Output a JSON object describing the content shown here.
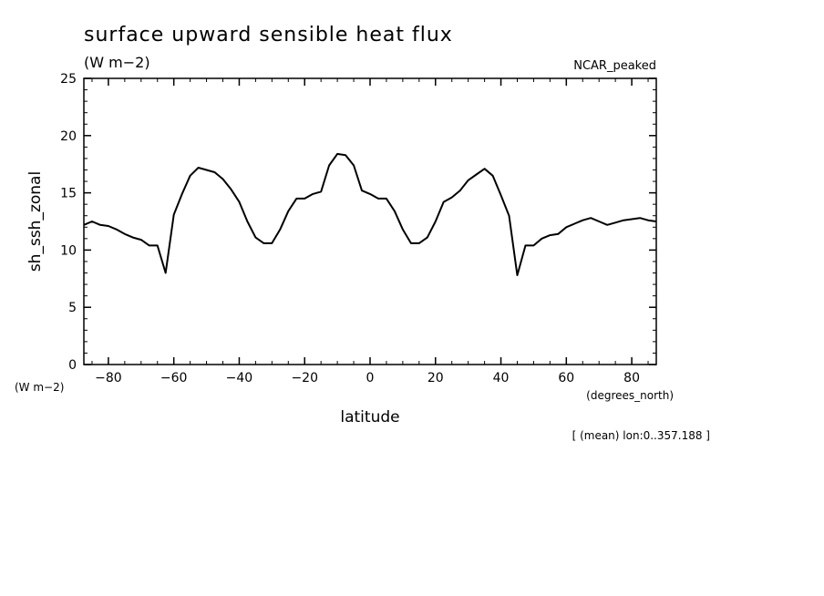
{
  "header": {
    "title": "surface upward sensible heat flux",
    "units": "(W m−2)",
    "dataset": "NCAR_peaked",
    "y_units_corner": "(W m−2)",
    "x_units": "(degrees_north)",
    "footnote": "[ (mean) lon:0..357.188 ]"
  },
  "chart_data": {
    "type": "line",
    "title": "surface upward sensible heat flux",
    "xlabel": "latitude",
    "ylabel": "sh_ssh_zonal",
    "xlim": [
      -87.5,
      87.5
    ],
    "ylim": [
      0,
      25
    ],
    "x_ticks": [
      -80,
      -60,
      -40,
      -20,
      0,
      20,
      40,
      60,
      80
    ],
    "x_tick_labels": [
      "−80",
      "−60",
      "−40",
      "−20",
      "0",
      "20",
      "40",
      "60",
      "80"
    ],
    "y_ticks": [
      0,
      5,
      10,
      15,
      20,
      25
    ],
    "y_tick_labels": [
      "0",
      "5",
      "10",
      "15",
      "20",
      "25"
    ],
    "grid": false,
    "line_color": "#000000",
    "series": [
      {
        "x": [
          -87.5,
          -85,
          -82.5,
          -80,
          -77.5,
          -75,
          -72.5,
          -70,
          -67.5,
          -65,
          -62.5,
          -60,
          -57.5,
          -55,
          -52.5,
          -50,
          -47.5,
          -45,
          -42.5,
          -40,
          -37.5,
          -35,
          -32.5,
          -30,
          -27.5,
          -25,
          -22.5,
          -20,
          -17.5,
          -15,
          -12.5,
          -10,
          -7.5,
          -5,
          -2.5,
          0,
          2.5,
          5,
          7.5,
          10,
          12.5,
          15,
          17.5,
          20,
          22.5,
          25,
          27.5,
          30,
          32.5,
          35,
          37.5,
          40,
          42.5,
          45,
          47.5,
          50,
          52.5,
          55,
          57.5,
          60,
          62.5,
          65,
          67.5,
          70,
          72.5,
          75,
          77.5,
          80,
          82.5,
          85,
          87.5
        ],
        "y": [
          12.2,
          12.5,
          12.2,
          12.1,
          11.8,
          11.4,
          11.1,
          10.9,
          10.4,
          10.4,
          8.0,
          13.1,
          14.9,
          16.5,
          17.2,
          17.0,
          16.8,
          16.2,
          15.3,
          14.2,
          12.5,
          11.1,
          10.6,
          10.6,
          11.8,
          13.4,
          14.5,
          14.5,
          14.9,
          15.1,
          17.4,
          18.4,
          18.3,
          17.4,
          15.2,
          14.9,
          14.5,
          14.5,
          13.4,
          11.8,
          10.6,
          10.6,
          11.1,
          12.5,
          14.2,
          14.6,
          15.2,
          16.1,
          16.6,
          17.1,
          16.5,
          14.8,
          13.0,
          7.8,
          10.4,
          10.4,
          11.0,
          11.3,
          11.4,
          12.0,
          12.3,
          12.6,
          12.8,
          12.5,
          12.2,
          12.4,
          12.6,
          12.7,
          12.8,
          12.6,
          12.5
        ]
      }
    ]
  }
}
